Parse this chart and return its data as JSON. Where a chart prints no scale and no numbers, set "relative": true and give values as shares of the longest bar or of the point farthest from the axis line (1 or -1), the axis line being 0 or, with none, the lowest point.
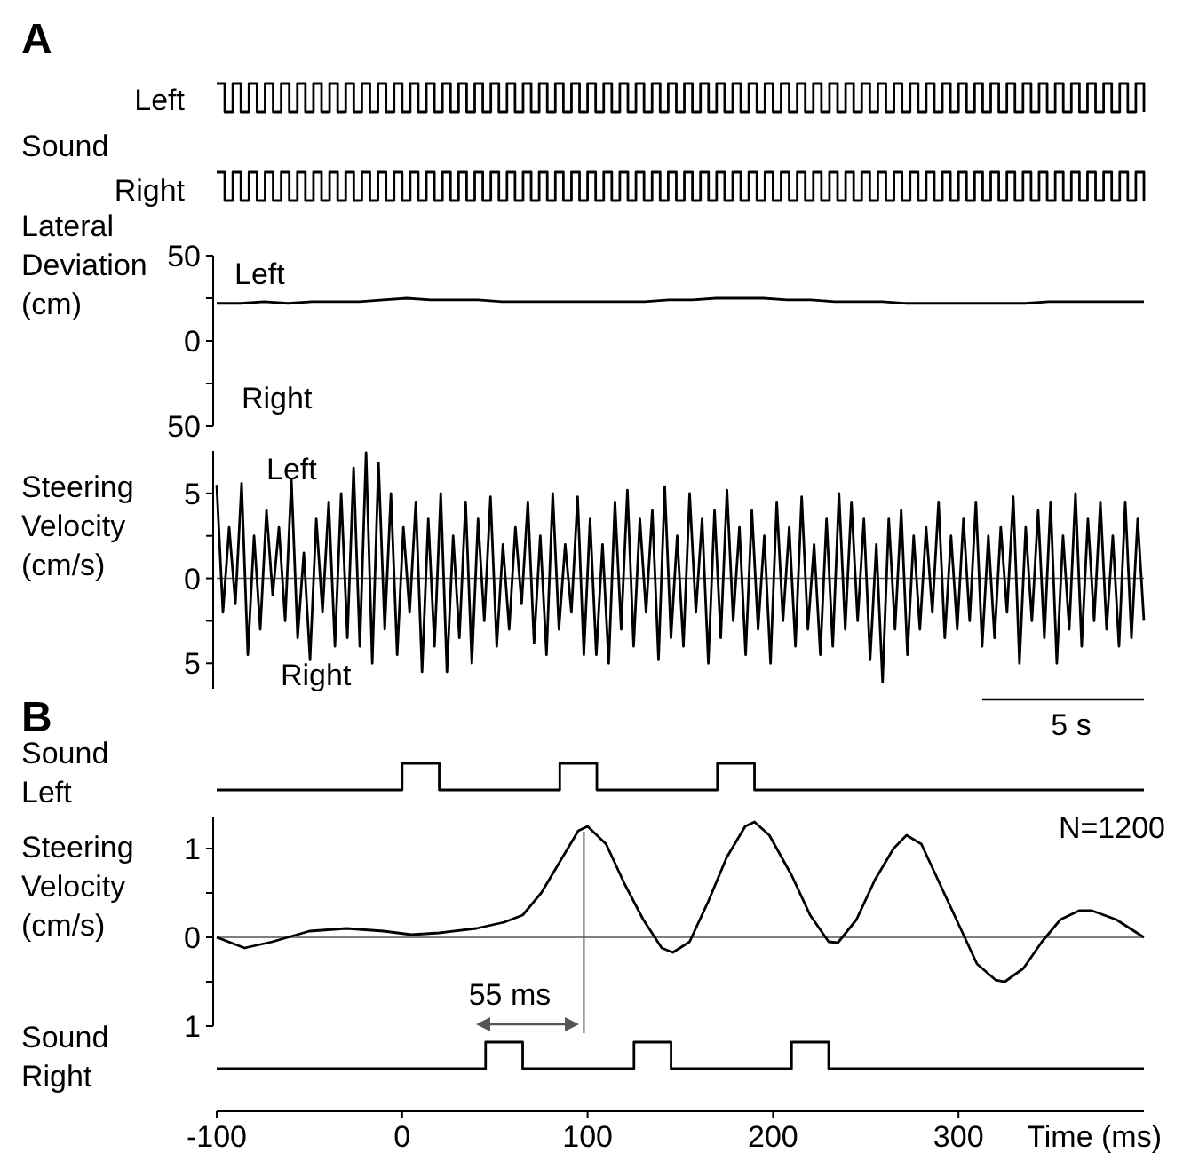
{
  "chart_data": [
    {
      "type": "step",
      "title": "A",
      "ylabel": "Left",
      "relative": true,
      "color": "#000000",
      "categories": [
        null,
        null,
        null,
        null,
        null,
        null,
        null,
        null,
        null,
        null,
        null,
        null,
        null,
        null,
        null,
        null,
        null,
        null,
        null,
        null,
        null,
        null,
        null,
        null,
        null,
        null,
        null,
        null,
        null,
        null,
        null,
        null,
        null,
        null,
        null,
        null,
        null,
        null,
        null,
        null,
        null,
        null,
        null,
        null,
        null,
        null,
        null,
        null,
        null,
        null,
        null,
        null,
        null,
        null,
        null,
        null,
        null,
        null,
        null,
        null,
        null,
        null,
        null,
        null,
        null,
        null,
        null,
        null,
        null,
        null,
        null,
        null,
        null,
        null,
        null,
        null,
        null,
        null,
        null,
        null,
        null,
        null,
        null,
        null,
        null,
        null,
        null,
        null,
        null,
        null,
        null,
        null,
        null,
        null,
        null,
        null,
        null,
        null,
        null,
        null,
        null,
        null,
        null,
        null,
        null,
        null,
        null,
        null,
        null,
        null,
        null,
        null,
        null,
        null,
        null,
        null
      ],
      "values": [
        1,
        0,
        1,
        0,
        1,
        0,
        1,
        0,
        1,
        0,
        1,
        0,
        1,
        0,
        1,
        0,
        1,
        0,
        1,
        0,
        1,
        0,
        1,
        0,
        1,
        0,
        1,
        0,
        1,
        0,
        1,
        0,
        1,
        0,
        1,
        0,
        1,
        0,
        1,
        0,
        1,
        0,
        1,
        0,
        1,
        0,
        1,
        0,
        1,
        0,
        1,
        0,
        1,
        0,
        1,
        0,
        1,
        0,
        1,
        0,
        1,
        0,
        1,
        0,
        1,
        0,
        1,
        0,
        1,
        0,
        1,
        0,
        1,
        0,
        1,
        0,
        1,
        0,
        1,
        0,
        1,
        0,
        1,
        0,
        1,
        0,
        1,
        0,
        1,
        0,
        1,
        0,
        1,
        0,
        1,
        0,
        1,
        0,
        1,
        0,
        1,
        0,
        1,
        0,
        1,
        0,
        1,
        0,
        1,
        0,
        1,
        0,
        1,
        0,
        1,
        0
      ]
    },
    {
      "type": "step",
      "ylabel": "Right",
      "relative": true,
      "color": "#000000",
      "annotations": [
        "Sound"
      ],
      "categories": [
        null,
        null,
        null,
        null,
        null,
        null,
        null,
        null,
        null,
        null,
        null,
        null,
        null,
        null,
        null,
        null,
        null,
        null,
        null,
        null,
        null,
        null,
        null,
        null,
        null,
        null,
        null,
        null,
        null,
        null,
        null,
        null,
        null,
        null,
        null,
        null,
        null,
        null,
        null,
        null,
        null,
        null,
        null,
        null,
        null,
        null,
        null,
        null,
        null,
        null,
        null,
        null,
        null,
        null,
        null,
        null,
        null,
        null,
        null,
        null,
        null,
        null,
        null,
        null,
        null,
        null,
        null,
        null,
        null,
        null,
        null,
        null,
        null,
        null,
        null,
        null,
        null,
        null,
        null,
        null,
        null,
        null,
        null,
        null,
        null,
        null,
        null,
        null,
        null,
        null,
        null,
        null,
        null,
        null,
        null,
        null,
        null,
        null,
        null,
        null,
        null,
        null,
        null,
        null,
        null,
        null,
        null,
        null,
        null,
        null,
        null,
        null,
        null,
        null,
        null,
        null
      ],
      "values": [
        1,
        0,
        1,
        0,
        1,
        0,
        1,
        0,
        1,
        0,
        1,
        0,
        1,
        0,
        1,
        0,
        1,
        0,
        1,
        0,
        1,
        0,
        1,
        0,
        1,
        0,
        1,
        0,
        1,
        0,
        1,
        0,
        1,
        0,
        1,
        0,
        1,
        0,
        1,
        0,
        1,
        0,
        1,
        0,
        1,
        0,
        1,
        0,
        1,
        0,
        1,
        0,
        1,
        0,
        1,
        0,
        1,
        0,
        1,
        0,
        1,
        0,
        1,
        0,
        1,
        0,
        1,
        0,
        1,
        0,
        1,
        0,
        1,
        0,
        1,
        0,
        1,
        0,
        1,
        0,
        1,
        0,
        1,
        0,
        1,
        0,
        1,
        0,
        1,
        0,
        1,
        0,
        1,
        0,
        1,
        0,
        1,
        0,
        1,
        0,
        1,
        0,
        1,
        0,
        1,
        0,
        1,
        0,
        1,
        0,
        1,
        0,
        1,
        0,
        1,
        0
      ]
    },
    {
      "type": "line",
      "ylabel": "Lateral Deviation (cm)",
      "tick_labels": "y",
      "color": "#000000",
      "annotations": [
        "Left",
        "Right"
      ],
      "ylim": [
        -50,
        50
      ],
      "yticks": [
        {
          "value": 50,
          "label": "50"
        },
        {
          "value": 25,
          "label": null
        },
        {
          "value": 0,
          "label": "0"
        },
        {
          "value": -25,
          "label": null
        },
        {
          "value": -50,
          "label": "50"
        }
      ],
      "categories": [
        null,
        null,
        null,
        null,
        null,
        null,
        null,
        null,
        null,
        null,
        null,
        null,
        null,
        null,
        null,
        null,
        null,
        null,
        null,
        null,
        null,
        null,
        null,
        null,
        null,
        null,
        null,
        null,
        null,
        null,
        null,
        null,
        null,
        null,
        null,
        null,
        null,
        null,
        null,
        null
      ],
      "values": [
        22,
        22,
        23,
        22,
        23,
        23,
        23,
        24,
        25,
        24,
        24,
        24,
        23,
        23,
        23,
        23,
        23,
        23,
        23,
        24,
        24,
        25,
        25,
        25,
        24,
        24,
        23,
        23,
        23,
        22,
        22,
        22,
        22,
        22,
        22,
        23,
        23,
        23,
        23,
        23
      ]
    },
    {
      "type": "line",
      "ylabel": "Steering Velocity (cm/s)",
      "tick_labels": "y",
      "color": "#000000",
      "annotations": [
        "Left",
        "Right",
        "5 s"
      ],
      "ylim": [
        -6.5,
        7.5
      ],
      "yticks": [
        {
          "value": 5,
          "label": "5"
        },
        {
          "value": 2.5,
          "label": null
        },
        {
          "value": 0,
          "label": "0"
        },
        {
          "value": -2.5,
          "label": null
        },
        {
          "value": -5,
          "label": "5"
        }
      ],
      "ref_lines": [
        {
          "axis": "y",
          "value": 0
        }
      ],
      "categories": [
        null,
        null,
        null,
        null,
        null,
        null,
        null,
        null,
        null,
        null,
        null,
        null,
        null,
        null,
        null,
        null,
        null,
        null,
        null,
        null,
        null,
        null,
        null,
        null,
        null,
        null,
        null,
        null,
        null,
        null,
        null,
        null,
        null,
        null,
        null,
        null,
        null,
        null,
        null,
        null,
        null,
        null,
        null,
        null,
        null,
        null,
        null,
        null,
        null,
        null,
        null,
        null,
        null,
        null,
        null,
        null,
        null,
        null,
        null,
        null,
        null,
        null,
        null,
        null,
        null,
        null,
        null,
        null,
        null,
        null,
        null,
        null,
        null,
        null,
        null,
        null,
        null,
        null,
        null,
        null,
        null,
        null,
        null,
        null,
        null,
        null,
        null,
        null,
        null,
        null,
        null,
        null,
        null,
        null,
        null,
        null,
        null,
        null,
        null,
        null,
        null,
        null,
        null,
        null,
        null,
        null,
        null,
        null,
        null,
        null,
        null,
        null,
        null,
        null,
        null,
        null,
        null,
        null,
        null,
        null,
        null,
        null,
        null,
        null,
        null,
        null,
        null,
        null,
        null,
        null,
        null,
        null,
        null,
        null,
        null,
        null,
        null,
        null,
        null,
        null,
        null,
        null,
        null,
        null,
        null,
        null,
        null,
        null,
        null,
        null
      ],
      "values": [
        5.5,
        -2,
        3,
        -1.5,
        5.6,
        -4.5,
        2.5,
        -3,
        4,
        -1,
        3,
        -2.5,
        5.8,
        -3.5,
        1.5,
        -4.8,
        3.5,
        -2,
        4.5,
        -4,
        5,
        -3.5,
        6.5,
        -4,
        7.4,
        -5,
        6.8,
        -3,
        5,
        -4.5,
        3,
        -2,
        4.5,
        -5.5,
        3.5,
        -4,
        5,
        -5.5,
        2.5,
        -3.5,
        4.5,
        -5,
        3.5,
        -2.5,
        4.8,
        -4,
        2,
        -3,
        3,
        -1.5,
        4.5,
        -3.8,
        2.5,
        -4.5,
        5,
        -3,
        2,
        -2,
        4.8,
        -4.5,
        3.5,
        -4.5,
        2,
        -5,
        4.5,
        -3,
        5.2,
        -4,
        3.5,
        -2,
        4,
        -4.8,
        5.4,
        -3.5,
        2.5,
        -4,
        5,
        -2,
        3.5,
        -5,
        4,
        -3.5,
        5.2,
        -2.5,
        3,
        -4.5,
        4,
        -3,
        2.5,
        -5,
        4.5,
        -2.5,
        3,
        -4,
        4.8,
        -3,
        2,
        -4.5,
        3.5,
        -4,
        5,
        -3,
        4.5,
        -2.5,
        3.5,
        -4.8,
        2,
        -6.1,
        3.5,
        -3,
        4,
        -4.5,
        2.5,
        -3,
        3,
        -2,
        4.5,
        -3.5,
        2.5,
        -3,
        3.5,
        -2.5,
        4.5,
        -4,
        2.5,
        -3.5,
        3,
        -2,
        4.8,
        -5,
        3,
        -2.5,
        4,
        -3.5,
        4.5,
        -5,
        2.5,
        -3,
        5,
        -4,
        3.5,
        -2.5,
        4.5,
        -3,
        2.5,
        -4,
        4.5,
        -3.5,
        3.5,
        -2.5
      ]
    },
    {
      "type": "step",
      "title": "B",
      "ylabel": "Sound Left",
      "relative": true,
      "color": "#000000",
      "categories": [
        null,
        null,
        null,
        null,
        null,
        null,
        null,
        null,
        null,
        null,
        null,
        null,
        null,
        null,
        null,
        null,
        null,
        null,
        null,
        null,
        null,
        null,
        null,
        null,
        null,
        null,
        null,
        null,
        null,
        null,
        null,
        null,
        null,
        null,
        null,
        null,
        null,
        null,
        null,
        null,
        null,
        null,
        null,
        null,
        null,
        null,
        null,
        null,
        null,
        null,
        null,
        null,
        null,
        null,
        null,
        null,
        null,
        null,
        null,
        null,
        null,
        null,
        null,
        null,
        null,
        null,
        null,
        null,
        null,
        null,
        null,
        null,
        null,
        null,
        null,
        null,
        null,
        null,
        null,
        null,
        null,
        null,
        null,
        null,
        null,
        null,
        null,
        null,
        null,
        null,
        null,
        null,
        null,
        null,
        null,
        null,
        null,
        null,
        null,
        null,
        null
      ],
      "values": [
        0,
        0,
        0,
        0,
        0,
        0,
        0,
        0,
        0,
        0,
        0,
        0,
        0,
        0,
        0,
        0,
        0,
        0,
        0,
        0,
        1,
        1,
        1,
        1,
        0,
        0,
        0,
        0,
        0,
        0,
        0,
        0,
        0,
        0,
        0,
        0,
        0,
        1,
        1,
        1,
        1,
        0,
        0,
        0,
        0,
        0,
        0,
        0,
        0,
        0,
        0,
        0,
        0,
        0,
        1,
        1,
        1,
        1,
        0,
        0,
        0,
        0,
        0,
        0,
        0,
        0,
        0,
        0,
        0,
        0,
        0,
        0,
        0,
        0,
        0,
        0,
        0,
        0,
        0,
        0,
        0,
        0,
        0,
        0,
        0,
        0,
        0,
        0,
        0,
        0,
        0,
        0,
        0,
        0,
        0,
        0,
        0,
        0,
        0,
        0,
        0
      ]
    },
    {
      "type": "line",
      "ylabel": "Steering Velocity (cm/s)",
      "xlabel": "Time (ms)",
      "color": "#000000",
      "annotations": [
        "N=1200",
        "55 ms"
      ],
      "xlim": [
        -100,
        400
      ],
      "xticks": [
        -100,
        0,
        100,
        200,
        300
      ],
      "ylim": [
        -1,
        1.35
      ],
      "yticks": [
        {
          "value": 1,
          "label": "1"
        },
        {
          "value": 0.5,
          "label": null
        },
        {
          "value": 0,
          "label": "0"
        },
        {
          "value": -0.5,
          "label": null
        },
        {
          "value": -1,
          "label": "1"
        }
      ],
      "ref_lines": [
        {
          "axis": "y",
          "value": 0
        },
        {
          "axis": "x",
          "value": 98
        }
      ],
      "x": [
        -100,
        -85,
        -70,
        -50,
        -30,
        -10,
        5,
        20,
        40,
        55,
        65,
        75,
        85,
        95,
        100,
        110,
        120,
        130,
        140,
        146,
        155,
        165,
        175,
        185,
        190,
        198,
        210,
        220,
        230,
        235,
        245,
        255,
        265,
        272,
        280,
        290,
        300,
        310,
        320,
        325,
        335,
        345,
        355,
        365,
        372,
        385,
        400
      ],
      "values": [
        0,
        -0.12,
        -0.05,
        0.07,
        0.1,
        0.07,
        0.03,
        0.05,
        0.1,
        0.17,
        0.25,
        0.5,
        0.85,
        1.2,
        1.25,
        1.05,
        0.6,
        0.2,
        -0.12,
        -0.17,
        -0.05,
        0.4,
        0.9,
        1.25,
        1.3,
        1.15,
        0.7,
        0.25,
        -0.05,
        -0.06,
        0.2,
        0.65,
        1.0,
        1.15,
        1.05,
        0.6,
        0.15,
        -0.3,
        -0.48,
        -0.5,
        -0.35,
        -0.05,
        0.2,
        0.3,
        0.3,
        0.2,
        0.0
      ]
    },
    {
      "type": "step",
      "ylabel": "Sound Right",
      "relative": true,
      "color": "#000000",
      "categories": [
        null,
        null,
        null,
        null,
        null,
        null,
        null,
        null,
        null,
        null,
        null,
        null,
        null,
        null,
        null,
        null,
        null,
        null,
        null,
        null,
        null,
        null,
        null,
        null,
        null,
        null,
        null,
        null,
        null,
        null,
        null,
        null,
        null,
        null,
        null,
        null,
        null,
        null,
        null,
        null,
        null,
        null,
        null,
        null,
        null,
        null,
        null,
        null,
        null,
        null,
        null,
        null,
        null,
        null,
        null,
        null,
        null,
        null,
        null,
        null,
        null,
        null,
        null,
        null,
        null,
        null,
        null,
        null,
        null,
        null,
        null,
        null,
        null,
        null,
        null,
        null,
        null,
        null,
        null,
        null,
        null,
        null,
        null,
        null,
        null,
        null,
        null,
        null,
        null,
        null,
        null,
        null,
        null,
        null,
        null,
        null,
        null,
        null,
        null,
        null,
        null
      ],
      "values": [
        0,
        0,
        0,
        0,
        0,
        0,
        0,
        0,
        0,
        0,
        0,
        0,
        0,
        0,
        0,
        0,
        0,
        0,
        0,
        0,
        0,
        0,
        0,
        0,
        0,
        0,
        0,
        0,
        0,
        1,
        1,
        1,
        1,
        0,
        0,
        0,
        0,
        0,
        0,
        0,
        0,
        0,
        0,
        0,
        0,
        1,
        1,
        1,
        1,
        0,
        0,
        0,
        0,
        0,
        0,
        0,
        0,
        0,
        0,
        0,
        0,
        0,
        1,
        1,
        1,
        1,
        0,
        0,
        0,
        0,
        0,
        0,
        0,
        0,
        0,
        0,
        0,
        0,
        0,
        0,
        0,
        0,
        0,
        0,
        0,
        0,
        0,
        0,
        0,
        0,
        0,
        0,
        0,
        0,
        0,
        0,
        0,
        0,
        0,
        0,
        0
      ]
    }
  ]
}
